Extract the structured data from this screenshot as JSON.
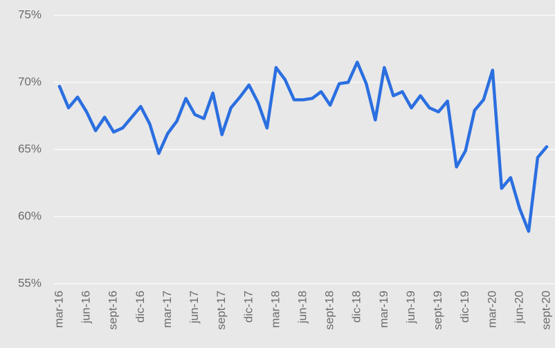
{
  "chart_data": {
    "type": "line",
    "categories": [
      "mar-16",
      null,
      null,
      "jun-16",
      null,
      null,
      "sept-16",
      null,
      null,
      "dic-16",
      null,
      null,
      "mar-17",
      null,
      null,
      "jun-17",
      null,
      null,
      "sept-17",
      null,
      null,
      "dic-17",
      null,
      null,
      "mar-18",
      null,
      null,
      "jun-18",
      null,
      null,
      "sept-18",
      null,
      null,
      "dic-18",
      null,
      null,
      "mar-19",
      null,
      null,
      "jun-19",
      null,
      null,
      "sept-19",
      null,
      null,
      "dic-19",
      null,
      null,
      "mar-20",
      null,
      null,
      "jun-20",
      null,
      null,
      "sept-20"
    ],
    "values": [
      69.7,
      68.1,
      68.9,
      67.8,
      66.4,
      67.4,
      66.3,
      66.6,
      67.4,
      68.2,
      66.9,
      64.7,
      66.2,
      67.1,
      68.8,
      67.6,
      67.3,
      69.2,
      66.1,
      68.1,
      68.9,
      69.8,
      68.5,
      66.6,
      71.1,
      70.2,
      68.7,
      68.7,
      68.8,
      69.3,
      68.3,
      69.9,
      70.0,
      71.5,
      69.9,
      67.2,
      71.1,
      69.0,
      69.3,
      68.1,
      69.0,
      68.1,
      67.8,
      68.6,
      63.7,
      64.9,
      67.9,
      68.7,
      70.9,
      62.1,
      62.9,
      60.6,
      58.9,
      64.4,
      65.2
    ],
    "color": "#2b6fe0",
    "ylim": [
      55,
      75
    ],
    "yticks": [
      {
        "value": 55,
        "label": "55%"
      },
      {
        "value": 60,
        "label": "60%"
      },
      {
        "value": 65,
        "label": "65%"
      },
      {
        "value": 70,
        "label": "70%"
      },
      {
        "value": 75,
        "label": "75%"
      }
    ],
    "grid": true
  }
}
